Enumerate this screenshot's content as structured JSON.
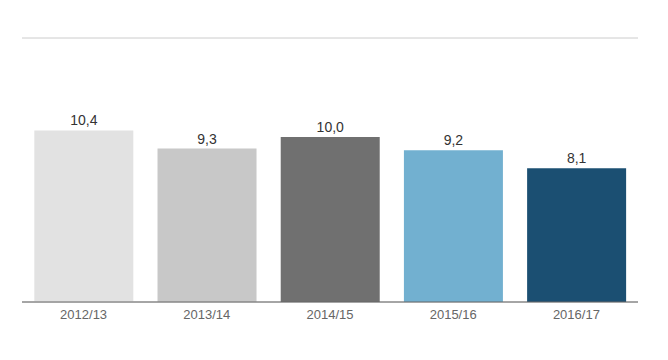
{
  "chart_data": {
    "type": "bar",
    "categories": [
      "2012/13",
      "2013/14",
      "2014/15",
      "2015/16",
      "2016/17"
    ],
    "values": [
      10.4,
      9.3,
      10.0,
      9.2,
      8.1
    ],
    "value_labels": [
      "10,4",
      "9,3",
      "10,0",
      "9,2",
      "8,1"
    ],
    "colors": [
      "#e2e2e2",
      "#c8c8c8",
      "#707070",
      "#72b0d0",
      "#1b4f72"
    ],
    "ylim": [
      0,
      16
    ],
    "yticks": [
      0,
      2,
      4,
      6,
      8,
      10,
      12,
      14,
      16
    ],
    "grid": true,
    "tick_labels": "x"
  }
}
